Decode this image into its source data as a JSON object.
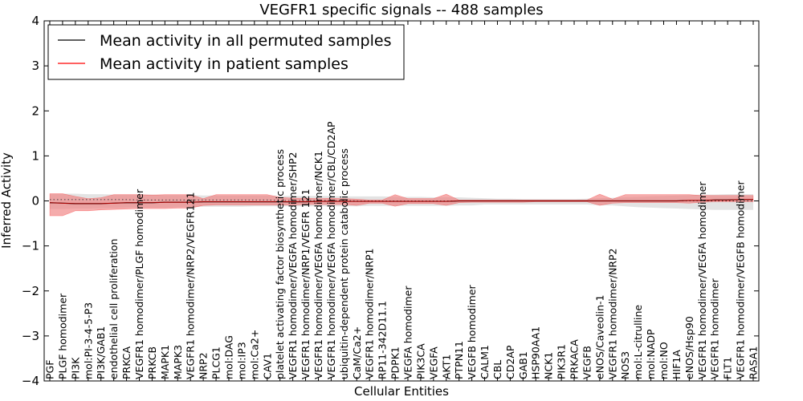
{
  "chart_data": {
    "type": "line",
    "title": "VEGFR1 specific signals -- 488 samples",
    "xlabel": "Cellular Entities",
    "ylabel": "Inferred Activity",
    "ylim": [
      -4,
      4
    ],
    "yticks": [
      -4,
      -3,
      -2,
      -1,
      0,
      1,
      2,
      3,
      4
    ],
    "ytick_labels": [
      "−4",
      "−3",
      "−2",
      "−1",
      "0",
      "1",
      "2",
      "3",
      "4"
    ],
    "grid": false,
    "legend": {
      "position": "top-left",
      "entries": [
        {
          "label": "Mean activity in all permuted samples",
          "color": "#000000"
        },
        {
          "label": "Mean activity in patient samples",
          "color": "#ff0000"
        }
      ]
    },
    "colors": {
      "patient": "#ff0000",
      "patient_band": "#f08080",
      "permuted": "#000000",
      "permuted_band": "#b0b0b0"
    },
    "categories": [
      "PGF",
      "PLGF homodimer",
      "PI3K",
      "mol:PI-3-4-5-P3",
      "PI3K/GAB1",
      "endothelial cell proliferation",
      "PRKCA",
      "VEGFR1 homodimer/PLGF homodimer",
      "PRKCB",
      "MAPK1",
      "MAPK3",
      "VEGFR1 homodimer/NRP2/VEGFR121",
      "NRP2",
      "PLCG1",
      "mol:DAG",
      "mol:IP3",
      "mol:Ca2+",
      "CAV1",
      "platelet activating factor biosynthetic process",
      "VEGFR1 homodimer/VEGFA homodimer/SHP2",
      "VEGFR1 homodimer/NRP1/VEGFR 121",
      "VEGFR1 homodimer/VEGFA homodimer/NCK1",
      "VEGFR1 homodimer/VEGFA homodimer/CBL/CD2AP",
      "ubiquitin-dependent protein catabolic process",
      "CaM/Ca2+",
      "VEGFR1 homodimer/NRP1",
      "RP11-342D11.1",
      "PDPK1",
      "VEGFA homodimer",
      "PIK3CA",
      "VEGFA",
      "AKT1",
      "PTPN11",
      "VEGFB homodimer",
      "CALM1",
      "CBL",
      "CD2AP",
      "GAB1",
      "HSP90AA1",
      "NCK1",
      "PIK3R1",
      "PRKACA",
      "VEGFB",
      "eNOS/Caveolin-1",
      "VEGFR1 homodimer/NRP2",
      "NOS3",
      "mol:L-citrulline",
      "mol:NADP",
      "mol:NO",
      "HIF1A",
      "eNOS/Hsp90",
      "VEGFR1 homodimer/VEGFA homodimer",
      "VEGFR1 homodimer",
      "FLT1",
      "VEGFR1 homodimer/VEGFB homodimer",
      "RASA1"
    ],
    "series": [
      {
        "name": "Mean activity in patient samples",
        "values": [
          -0.04,
          -0.05,
          -0.06,
          -0.06,
          -0.06,
          -0.05,
          -0.04,
          -0.04,
          -0.04,
          -0.03,
          -0.03,
          -0.03,
          -0.02,
          -0.02,
          -0.02,
          -0.02,
          -0.02,
          -0.02,
          -0.02,
          -0.02,
          -0.02,
          -0.01,
          -0.01,
          -0.01,
          -0.01,
          -0.01,
          -0.01,
          -0.01,
          -0.01,
          -0.01,
          -0.01,
          -0.01,
          0.0,
          0.0,
          0.0,
          0.0,
          0.0,
          0.0,
          0.0,
          0.0,
          0.0,
          0.0,
          0.0,
          0.0,
          0.0,
          0.0,
          0.0,
          0.0,
          0.0,
          0.0,
          0.01,
          0.01,
          0.02,
          0.02,
          0.03,
          0.03
        ],
        "lower": [
          -0.33,
          -0.33,
          -0.22,
          -0.22,
          -0.2,
          -0.19,
          -0.18,
          -0.17,
          -0.17,
          -0.17,
          -0.16,
          -0.16,
          -0.1,
          -0.09,
          -0.09,
          -0.09,
          -0.09,
          -0.09,
          -0.09,
          -0.09,
          -0.08,
          -0.08,
          -0.08,
          -0.08,
          -0.1,
          -0.05,
          -0.05,
          -0.12,
          -0.06,
          -0.06,
          -0.06,
          -0.1,
          -0.04,
          -0.03,
          -0.03,
          -0.03,
          -0.03,
          -0.03,
          -0.02,
          -0.02,
          -0.02,
          -0.02,
          -0.02,
          -0.1,
          -0.05,
          -0.04,
          -0.04,
          -0.04,
          -0.04,
          -0.04,
          -0.05,
          -0.03,
          -0.02,
          -0.02,
          -0.02,
          -0.02
        ],
        "upper": [
          0.16,
          0.16,
          0.1,
          0.05,
          0.07,
          0.14,
          0.14,
          0.14,
          0.13,
          0.14,
          0.14,
          0.14,
          0.05,
          0.14,
          0.14,
          0.14,
          0.14,
          0.14,
          0.08,
          0.06,
          0.06,
          0.05,
          0.06,
          0.05,
          0.04,
          0.02,
          0.02,
          0.14,
          0.05,
          0.05,
          0.05,
          0.15,
          0.02,
          0.02,
          0.02,
          0.02,
          0.02,
          0.02,
          0.02,
          0.02,
          0.02,
          0.02,
          0.02,
          0.15,
          0.04,
          0.14,
          0.14,
          0.14,
          0.14,
          0.14,
          0.14,
          0.12,
          0.12,
          0.12,
          0.12,
          0.12
        ]
      },
      {
        "name": "Mean activity in all permuted samples",
        "values": [
          0.03,
          0.03,
          0.03,
          0.03,
          0.03,
          0.03,
          0.03,
          0.02,
          0.02,
          0.02,
          0.02,
          0.02,
          0.02,
          0.02,
          0.02,
          0.02,
          0.02,
          0.02,
          0.01,
          0.01,
          0.01,
          0.01,
          0.01,
          0.01,
          0.0,
          0.0,
          0.0,
          0.0,
          0.0,
          0.0,
          0.0,
          0.0,
          0.0,
          0.0,
          0.0,
          0.0,
          0.0,
          0.0,
          0.0,
          0.0,
          0.0,
          0.0,
          0.0,
          0.0,
          0.0,
          0.0,
          0.0,
          0.0,
          0.0,
          0.0,
          0.0,
          0.0,
          0.0,
          0.0,
          0.0,
          0.0
        ],
        "lower": [
          -0.18,
          -0.18,
          -0.17,
          -0.17,
          -0.16,
          -0.16,
          -0.15,
          -0.15,
          -0.15,
          -0.15,
          -0.14,
          -0.14,
          -0.13,
          -0.13,
          -0.13,
          -0.13,
          -0.12,
          -0.12,
          -0.12,
          -0.12,
          -0.12,
          -0.12,
          -0.12,
          -0.12,
          -0.12,
          -0.11,
          -0.11,
          -0.11,
          -0.11,
          -0.11,
          -0.11,
          -0.11,
          -0.1,
          -0.1,
          -0.08,
          -0.08,
          -0.08,
          -0.08,
          -0.08,
          -0.08,
          -0.08,
          -0.08,
          -0.08,
          -0.1,
          -0.1,
          -0.12,
          -0.14,
          -0.15,
          -0.16,
          -0.17,
          -0.18,
          -0.19,
          -0.2,
          -0.2,
          -0.2,
          -0.2
        ],
        "upper": [
          0.16,
          0.16,
          0.16,
          0.15,
          0.15,
          0.14,
          0.14,
          0.14,
          0.14,
          0.13,
          0.13,
          0.13,
          0.12,
          0.12,
          0.12,
          0.12,
          0.12,
          0.12,
          0.11,
          0.11,
          0.11,
          0.11,
          0.11,
          0.1,
          0.1,
          0.1,
          0.1,
          0.09,
          0.09,
          0.09,
          0.08,
          0.08,
          0.08,
          0.07,
          0.06,
          0.05,
          0.05,
          0.04,
          0.04,
          0.04,
          0.04,
          0.04,
          0.05,
          0.06,
          0.07,
          0.08,
          0.09,
          0.1,
          0.11,
          0.12,
          0.13,
          0.14,
          0.14,
          0.15,
          0.15,
          0.15
        ]
      }
    ]
  }
}
